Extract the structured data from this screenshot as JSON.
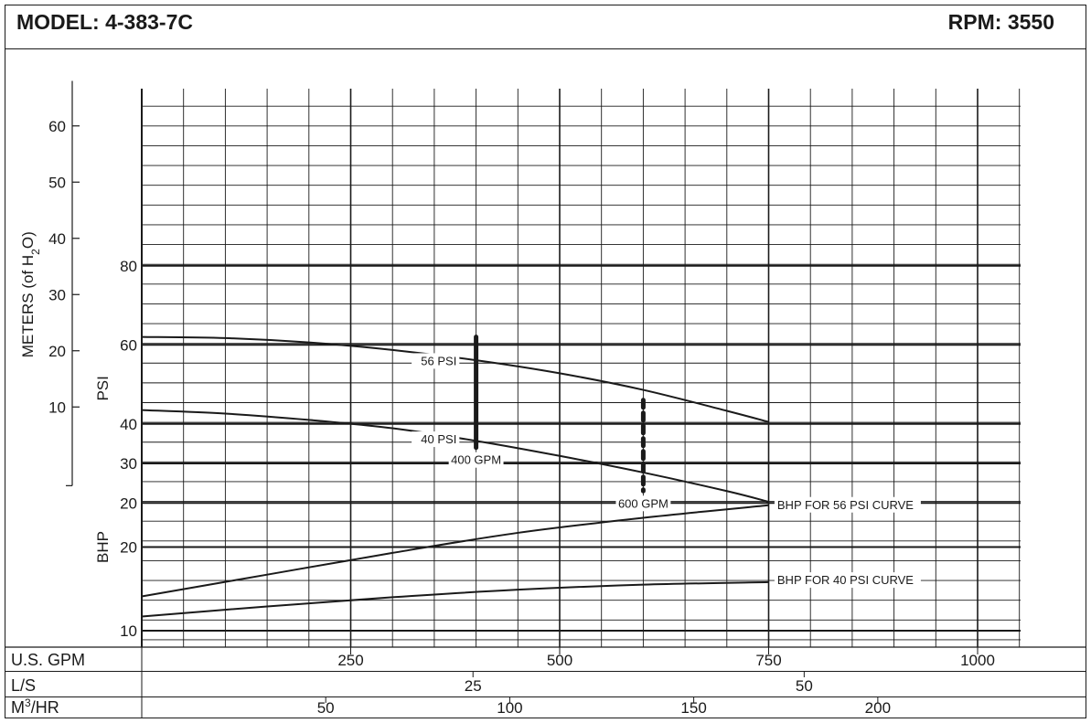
{
  "header": {
    "model": "MODEL: 4-383-7C",
    "rpm": "RPM: 3550"
  },
  "colors": {
    "ink": "#1a1a1a",
    "background": "#ffffff"
  },
  "chart_data": {
    "type": "line",
    "x_unit": "U.S. GPM",
    "x_range": [
      0,
      1000
    ],
    "x_ticks": [
      250,
      500,
      750,
      1000
    ],
    "flow_scales": [
      {
        "label": "U.S. GPM",
        "ticks": [
          {
            "label": "250",
            "gpm": 250
          },
          {
            "label": "500",
            "gpm": 500
          },
          {
            "label": "750",
            "gpm": 750
          },
          {
            "label": "1000",
            "gpm": 1000
          }
        ]
      },
      {
        "label": "L/S",
        "ticks": [
          {
            "label": "25",
            "gpm": 396.3
          },
          {
            "label": "50",
            "gpm": 792.5
          }
        ]
      },
      {
        "label": "M³/HR",
        "label_main": "M",
        "label_sup": "3",
        "label_tail": "/HR",
        "ticks": [
          {
            "label": "50",
            "gpm": 220.1
          },
          {
            "label": "100",
            "gpm": 440.3
          },
          {
            "label": "150",
            "gpm": 660.4
          },
          {
            "label": "200",
            "gpm": 880.6
          }
        ]
      }
    ],
    "psi_panel": {
      "ylabel": "PSI",
      "ylim": [
        10,
        90
      ],
      "y_ticks": [
        20,
        40,
        60,
        80
      ],
      "bottom_label": "30",
      "meters_axis": {
        "label": "METERS (of H₂O)",
        "label_pre": "METERS (of H",
        "label_sub": "2",
        "label_post": "O)",
        "ticks": [
          10,
          20,
          30,
          40,
          50,
          60
        ],
        "psi_per_meter": 1.422
      },
      "series": [
        {
          "name": "56 PSI",
          "x": [
            0,
            100,
            200,
            300,
            400,
            500,
            600,
            700,
            750
          ],
          "y": [
            62,
            61.7,
            60.6,
            58.7,
            56.1,
            52.8,
            48.6,
            43.3,
            40.5
          ]
        },
        {
          "name": "40 PSI",
          "x": [
            0,
            100,
            200,
            300,
            400,
            500,
            600,
            700,
            750
          ],
          "y": [
            43.5,
            42.6,
            41.0,
            38.9,
            35.7,
            31.9,
            27.7,
            23.0,
            20.3
          ]
        }
      ],
      "markers": [
        {
          "label": "400 GPM",
          "x": 400,
          "y_top": 62,
          "y_bottom": 34,
          "style": "solid"
        },
        {
          "label": "600 GPM",
          "x": 600,
          "y_top": 46,
          "y_bottom": 23,
          "style": "dashed"
        }
      ]
    },
    "bhp_panel": {
      "ylabel": "BHP",
      "ylim": [
        10,
        30
      ],
      "y_ticks": [
        10,
        20,
        30
      ],
      "series": [
        {
          "name": "BHP FOR 56 PSI CURVE",
          "x": [
            0,
            150,
            300,
            450,
            600,
            750
          ],
          "y": [
            14.1,
            16.7,
            19.3,
            21.7,
            23.5,
            25.0
          ]
        },
        {
          "name": "BHP FOR 40 PSI CURVE",
          "x": [
            0,
            150,
            300,
            450,
            600,
            750
          ],
          "y": [
            11.7,
            12.9,
            14.0,
            14.9,
            15.5,
            15.8
          ]
        }
      ]
    },
    "grid": true
  }
}
